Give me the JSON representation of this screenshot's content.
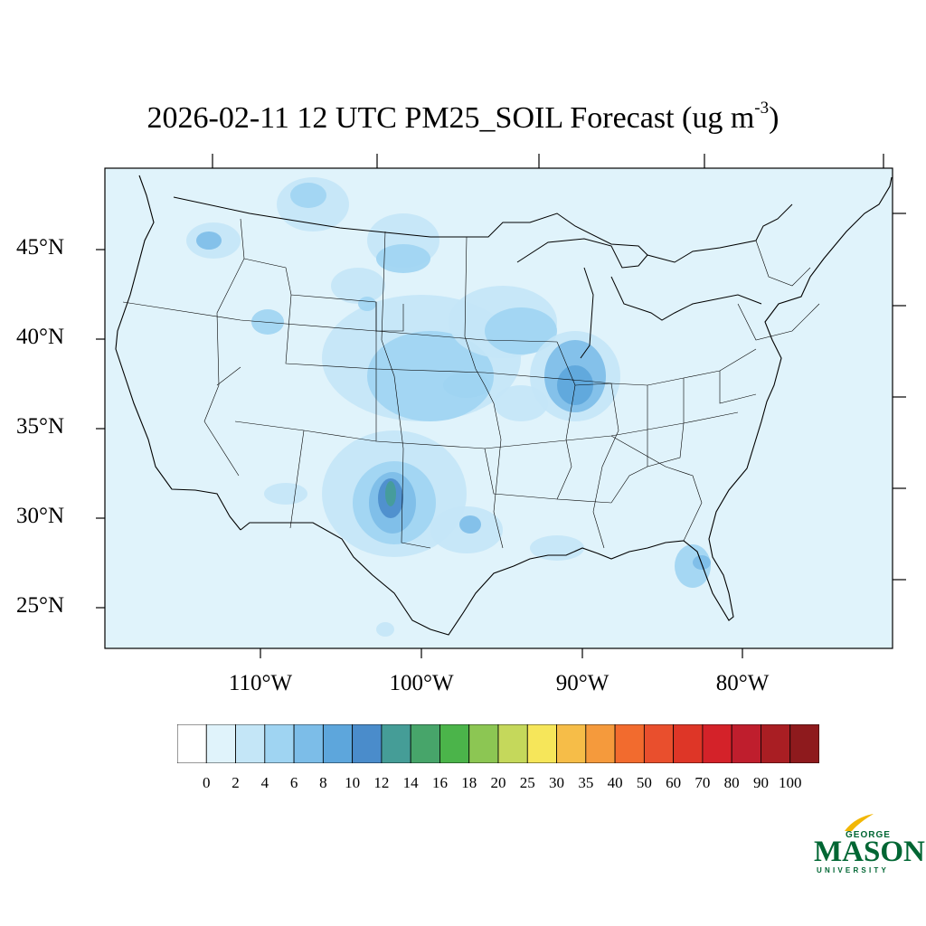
{
  "title": {
    "main": "2026-02-11 12 UTC PM25_SOIL Forecast (ug m",
    "superscript": "-3",
    "close": ")"
  },
  "map": {
    "region": "Continental United States",
    "background_color": "#e0f3fb",
    "latitude_labels": [
      "45°N",
      "40°N",
      "35°N",
      "30°N",
      "25°N"
    ],
    "longitude_labels": [
      "110°W",
      "100°W",
      "90°W",
      "80°W"
    ],
    "hotspot_colors": {
      "light": "#c4e6f7",
      "medium": "#9fd4f2",
      "blue": "#7cbde8",
      "darker": "#5da6dc",
      "dark": "#4a8ccb",
      "teal": "#459d97",
      "green": "#47a56a"
    }
  },
  "colorbar": {
    "colors": [
      "#ffffff",
      "#e0f3fb",
      "#c4e6f7",
      "#9fd4f2",
      "#7cbde8",
      "#5da6dc",
      "#4a8ccb",
      "#459d97",
      "#47a56a",
      "#4bb44a",
      "#8cc653",
      "#c5d85b",
      "#f6e65a",
      "#f6bd48",
      "#f59a3c",
      "#f26b2e",
      "#e94f2d",
      "#de3627",
      "#d42229",
      "#bf1e2d",
      "#a91e23",
      "#8e1a1d"
    ],
    "labels": [
      "0",
      "2",
      "4",
      "6",
      "8",
      "10",
      "12",
      "14",
      "16",
      "18",
      "20",
      "25",
      "30",
      "35",
      "40",
      "50",
      "60",
      "70",
      "80",
      "90",
      "100"
    ]
  },
  "logo": {
    "line1": "GEORGE",
    "line2": "MASON",
    "line3": "UNIVERSITY",
    "color": "#006633",
    "accent": "#f2b705"
  }
}
